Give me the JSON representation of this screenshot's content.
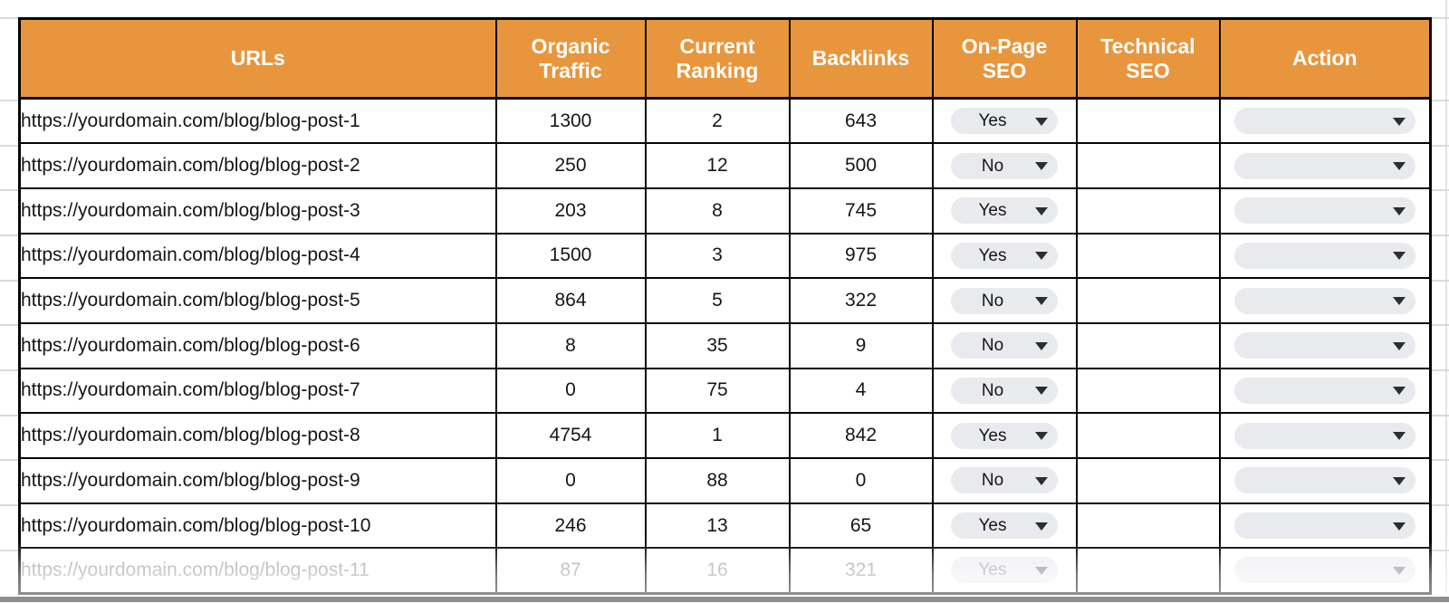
{
  "table": {
    "columns": [
      {
        "key": "url",
        "label": "URLs"
      },
      {
        "key": "traffic",
        "label": "Organic Traffic"
      },
      {
        "key": "ranking",
        "label": "Current Ranking"
      },
      {
        "key": "backlinks",
        "label": "Backlinks"
      },
      {
        "key": "onpage",
        "label": "On-Page SEO"
      },
      {
        "key": "technical",
        "label": "Technical SEO"
      },
      {
        "key": "action",
        "label": "Action"
      }
    ],
    "rows": [
      {
        "url": "https://yourdomain.com/blog/blog-post-1",
        "traffic": "1300",
        "ranking": "2",
        "backlinks": "643",
        "onpage": "Yes",
        "technical": "",
        "action": "",
        "muted": false
      },
      {
        "url": "https://yourdomain.com/blog/blog-post-2",
        "traffic": "250",
        "ranking": "12",
        "backlinks": "500",
        "onpage": "No",
        "technical": "",
        "action": "",
        "muted": false
      },
      {
        "url": "https://yourdomain.com/blog/blog-post-3",
        "traffic": "203",
        "ranking": "8",
        "backlinks": "745",
        "onpage": "Yes",
        "technical": "",
        "action": "",
        "muted": false
      },
      {
        "url": "https://yourdomain.com/blog/blog-post-4",
        "traffic": "1500",
        "ranking": "3",
        "backlinks": "975",
        "onpage": "Yes",
        "technical": "",
        "action": "",
        "muted": false
      },
      {
        "url": "https://yourdomain.com/blog/blog-post-5",
        "traffic": "864",
        "ranking": "5",
        "backlinks": "322",
        "onpage": "No",
        "technical": "",
        "action": "",
        "muted": false
      },
      {
        "url": "https://yourdomain.com/blog/blog-post-6",
        "traffic": "8",
        "ranking": "35",
        "backlinks": "9",
        "onpage": "No",
        "technical": "",
        "action": "",
        "muted": false
      },
      {
        "url": "https://yourdomain.com/blog/blog-post-7",
        "traffic": "0",
        "ranking": "75",
        "backlinks": "4",
        "onpage": "No",
        "technical": "",
        "action": "",
        "muted": false
      },
      {
        "url": "https://yourdomain.com/blog/blog-post-8",
        "traffic": "4754",
        "ranking": "1",
        "backlinks": "842",
        "onpage": "Yes",
        "technical": "",
        "action": "",
        "muted": false
      },
      {
        "url": "https://yourdomain.com/blog/blog-post-9",
        "traffic": "0",
        "ranking": "88",
        "backlinks": "0",
        "onpage": "No",
        "technical": "",
        "action": "",
        "muted": false
      },
      {
        "url": "https://yourdomain.com/blog/blog-post-10",
        "traffic": "246",
        "ranking": "13",
        "backlinks": "65",
        "onpage": "Yes",
        "technical": "",
        "action": "",
        "muted": false
      },
      {
        "url": "https://yourdomain.com/blog/blog-post-11",
        "traffic": "87",
        "ranking": "16",
        "backlinks": "321",
        "onpage": "Yes",
        "technical": "",
        "action": "",
        "muted": true
      }
    ]
  },
  "icons": {
    "dropdown": "caret-down-icon"
  },
  "colors": {
    "header_bg": "#E8963D",
    "header_text": "#FFFFFF",
    "table_border": "#050505",
    "body_text": "#161616",
    "pill_bg": "#E9EAED",
    "caret": "#2D2E31",
    "muted_text": "#A2A5AA",
    "gutter_gridline": "#DADADA",
    "bottom_band": "#8D8F92"
  }
}
